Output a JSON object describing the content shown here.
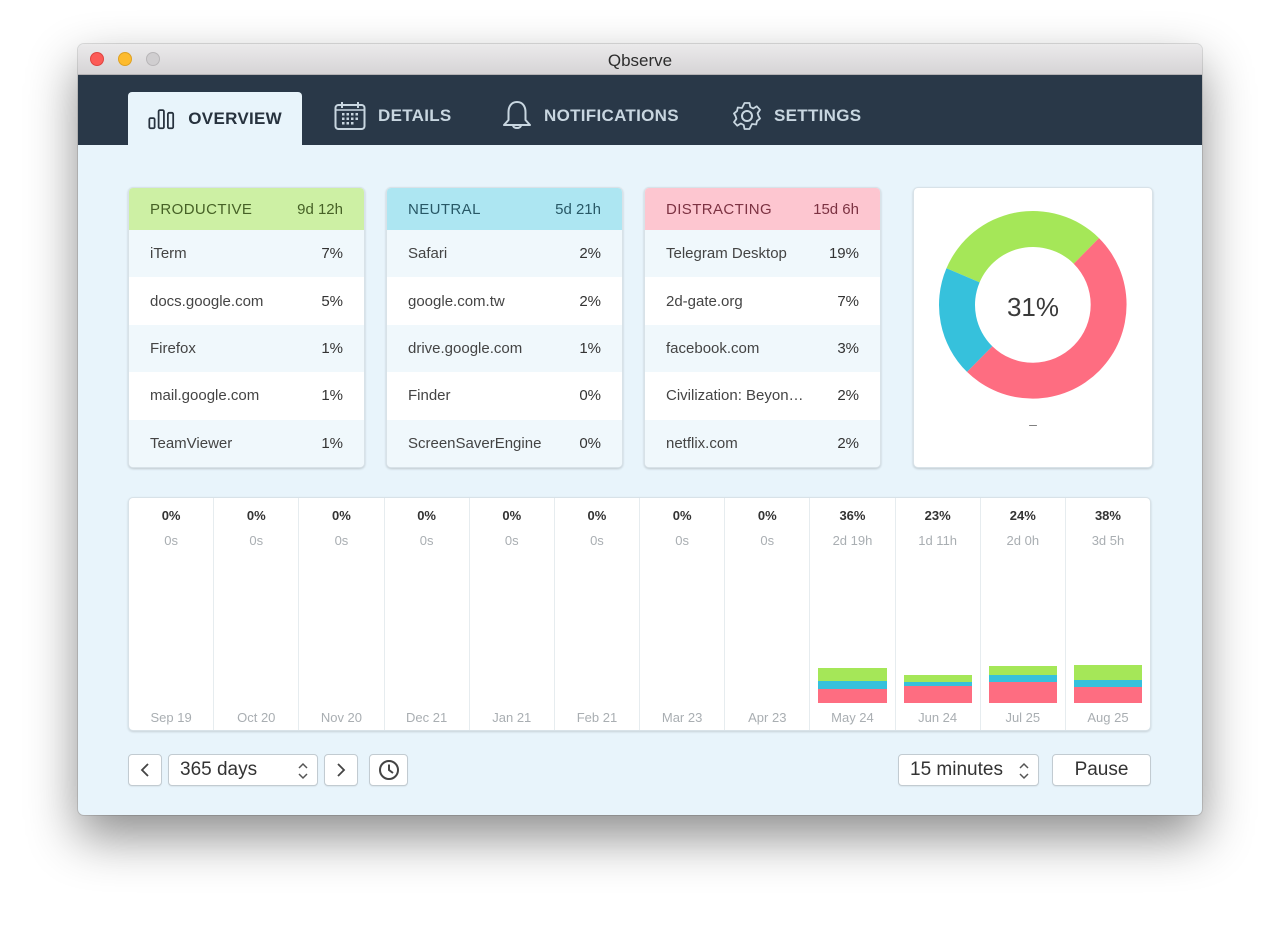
{
  "window": {
    "title": "Qbserve"
  },
  "nav": {
    "tabs": [
      {
        "label": "OVERVIEW",
        "icon": "bar-chart-icon",
        "active": true
      },
      {
        "label": "DETAILS",
        "icon": "calendar-icon",
        "active": false
      },
      {
        "label": "NOTIFICATIONS",
        "icon": "bell-icon",
        "active": false
      },
      {
        "label": "SETTINGS",
        "icon": "gear-icon",
        "active": false
      }
    ]
  },
  "categories": {
    "productive": {
      "label": "PRODUCTIVE",
      "total": "9d 12h",
      "color": "#cdf0a4",
      "items": [
        {
          "name": "iTerm",
          "pct": "7%"
        },
        {
          "name": "docs.google.com",
          "pct": "5%"
        },
        {
          "name": "Firefox",
          "pct": "1%"
        },
        {
          "name": "mail.google.com",
          "pct": "1%"
        },
        {
          "name": "TeamViewer",
          "pct": "1%"
        }
      ]
    },
    "neutral": {
      "label": "NEUTRAL",
      "total": "5d 21h",
      "color": "#ade6f2",
      "items": [
        {
          "name": "Safari",
          "pct": "2%"
        },
        {
          "name": "google.com.tw",
          "pct": "2%"
        },
        {
          "name": "drive.google.com",
          "pct": "1%"
        },
        {
          "name": "Finder",
          "pct": "0%"
        },
        {
          "name": "ScreenSaverEngine",
          "pct": "0%"
        }
      ]
    },
    "distracting": {
      "label": "DISTRACTING",
      "total": "15d 6h",
      "color": "#fdc6d0",
      "items": [
        {
          "name": "Telegram Desktop",
          "pct": "19%"
        },
        {
          "name": "2d-gate.org",
          "pct": "7%"
        },
        {
          "name": "facebook.com",
          "pct": "3%"
        },
        {
          "name": "Civilization: Beyon…",
          "pct": "2%"
        },
        {
          "name": "netflix.com",
          "pct": "2%"
        }
      ]
    }
  },
  "donut": {
    "center_label": "31%",
    "sub_label": "–",
    "segments": [
      {
        "name": "productive",
        "value": 31,
        "color": "#a5e758"
      },
      {
        "name": "distracting",
        "value": 50,
        "color": "#fe6d81"
      },
      {
        "name": "neutral",
        "value": 19,
        "color": "#36c1dc"
      }
    ]
  },
  "timeline": {
    "colors": {
      "productive": "#a5e758",
      "neutral": "#36c1dc",
      "distracting": "#fe6d81"
    },
    "columns": [
      {
        "pct": "0%",
        "duration": "0s",
        "date": "Sep 19",
        "prod": 0,
        "neut": 0,
        "dist": 0
      },
      {
        "pct": "0%",
        "duration": "0s",
        "date": "Oct 20",
        "prod": 0,
        "neut": 0,
        "dist": 0
      },
      {
        "pct": "0%",
        "duration": "0s",
        "date": "Nov 20",
        "prod": 0,
        "neut": 0,
        "dist": 0
      },
      {
        "pct": "0%",
        "duration": "0s",
        "date": "Dec 21",
        "prod": 0,
        "neut": 0,
        "dist": 0
      },
      {
        "pct": "0%",
        "duration": "0s",
        "date": "Jan 21",
        "prod": 0,
        "neut": 0,
        "dist": 0
      },
      {
        "pct": "0%",
        "duration": "0s",
        "date": "Feb 21",
        "prod": 0,
        "neut": 0,
        "dist": 0
      },
      {
        "pct": "0%",
        "duration": "0s",
        "date": "Mar 23",
        "prod": 0,
        "neut": 0,
        "dist": 0
      },
      {
        "pct": "0%",
        "duration": "0s",
        "date": "Apr 23",
        "prod": 0,
        "neut": 0,
        "dist": 0
      },
      {
        "pct": "36%",
        "duration": "2d 19h",
        "date": "May 24",
        "prod": 12.5,
        "neut": 8.5,
        "dist": 14
      },
      {
        "pct": "23%",
        "duration": "1d 11h",
        "date": "Jun 24",
        "prod": 7,
        "neut": 4.5,
        "dist": 17
      },
      {
        "pct": "24%",
        "duration": "2d 0h",
        "date": "Jul 25",
        "prod": 9,
        "neut": 6.5,
        "dist": 21.5
      },
      {
        "pct": "38%",
        "duration": "3d 5h",
        "date": "Aug 25",
        "prod": 14.5,
        "neut": 7.5,
        "dist": 16
      }
    ]
  },
  "footer": {
    "range_value": "365 days",
    "interval_value": "15 minutes",
    "pause_label": "Pause"
  }
}
